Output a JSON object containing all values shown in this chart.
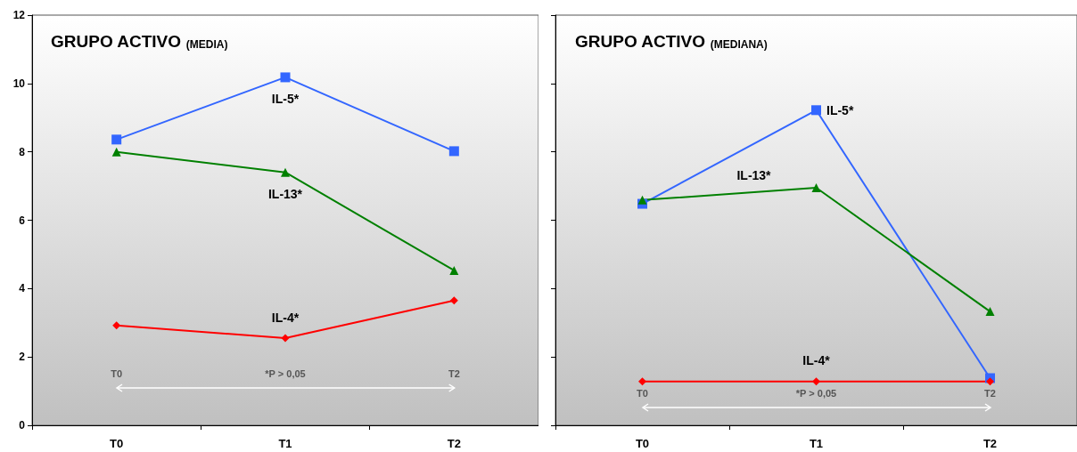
{
  "chart_data": [
    {
      "type": "line",
      "title": "GRUPO ACTIVO",
      "subtitle": "(MEDIA)",
      "categories": [
        "T0",
        "T1",
        "T2"
      ],
      "series": [
        {
          "name": "IL-5*",
          "color": "#3366ff",
          "marker": "square",
          "values": [
            8.36,
            10.18,
            8.02
          ]
        },
        {
          "name": "IL-13*",
          "color": "#008000",
          "marker": "triangle",
          "values": [
            8.0,
            7.4,
            4.53
          ]
        },
        {
          "name": "IL-4*",
          "color": "#ff0000",
          "marker": "diamond",
          "values": [
            2.92,
            2.55,
            3.65
          ]
        }
      ],
      "annotations": [
        "T0",
        "*P > 0,05",
        "T2"
      ],
      "ylim": [
        0,
        12
      ],
      "yticks": [
        0,
        2,
        4,
        6,
        8,
        10,
        12
      ],
      "grid": false,
      "legend": false
    },
    {
      "type": "line",
      "title": "GRUPO ACTIVO",
      "subtitle": "(MEDIANA)",
      "categories": [
        "T0",
        "T1",
        "T2"
      ],
      "series": [
        {
          "name": "IL-5*",
          "color": "#3366ff",
          "marker": "square",
          "values": [
            6.48,
            9.22,
            1.38
          ]
        },
        {
          "name": "IL-13*",
          "color": "#008000",
          "marker": "triangle",
          "values": [
            6.59,
            6.95,
            3.33
          ]
        },
        {
          "name": "IL-4*",
          "color": "#ff0000",
          "marker": "diamond",
          "values": [
            1.28,
            1.28,
            1.28
          ]
        }
      ],
      "annotations": [
        "T0",
        "*P > 0,05",
        "T2"
      ],
      "ylim": [
        0,
        12
      ],
      "yticks": [
        0,
        2,
        4,
        6,
        8,
        10,
        12
      ],
      "grid": false,
      "legend": false,
      "tick_labels": "x"
    }
  ]
}
